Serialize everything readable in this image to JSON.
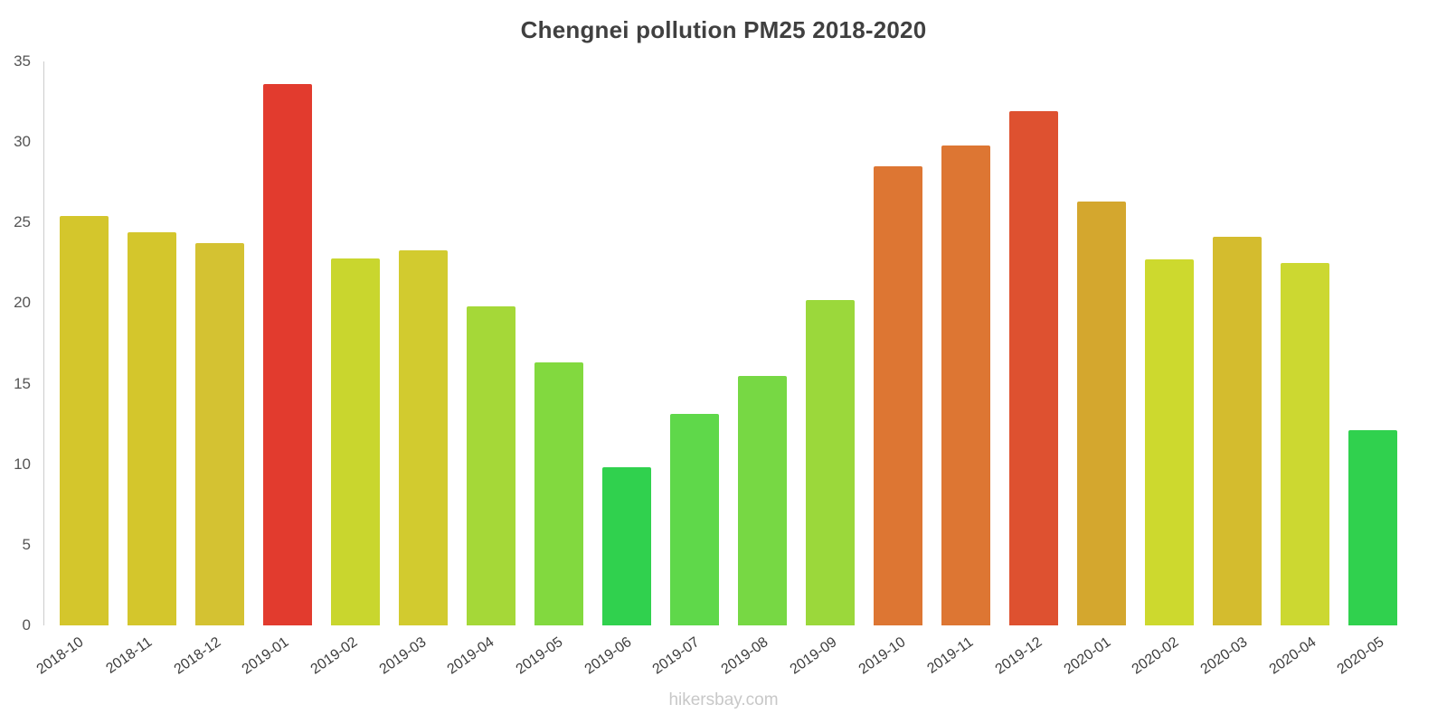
{
  "title": "Chengnei pollution PM25 2018-2020",
  "watermark": "hikersbay.com",
  "chart_data": {
    "type": "bar",
    "title": "Chengnei pollution PM25 2018-2020",
    "xlabel": "",
    "ylabel": "",
    "ylim": [
      0,
      35
    ],
    "yticks": [
      0,
      5,
      10,
      15,
      20,
      25,
      30,
      35
    ],
    "grid": false,
    "legend": false,
    "categories": [
      "2018-10",
      "2018-11",
      "2018-12",
      "2019-01",
      "2019-02",
      "2019-03",
      "2019-04",
      "2019-05",
      "2019-06",
      "2019-07",
      "2019-08",
      "2019-09",
      "2019-10",
      "2019-11",
      "2019-12",
      "2020-01",
      "2020-02",
      "2020-03",
      "2020-04",
      "2020-05"
    ],
    "values": [
      25.4,
      24.4,
      23.7,
      33.6,
      22.8,
      23.3,
      19.8,
      16.3,
      9.8,
      13.1,
      15.5,
      20.2,
      28.5,
      29.8,
      31.9,
      26.3,
      22.7,
      24.1,
      22.5,
      12.1
    ],
    "bar_colors": [
      "#d4c62c",
      "#d4c62c",
      "#d4c232",
      "#e23b2e",
      "#c9d62e",
      "#d2cb2f",
      "#a5d838",
      "#82d93f",
      "#30d14e",
      "#5fd84a",
      "#77d844",
      "#9bd83b",
      "#dd7633",
      "#dd7633",
      "#de5130",
      "#d4a72e",
      "#cdd92e",
      "#d4bc2e",
      "#ccd831",
      "#30d14e"
    ],
    "axis_color": "#cccccc",
    "tick_label_color": "#555555",
    "category_label_color": "#3d3d3d"
  }
}
